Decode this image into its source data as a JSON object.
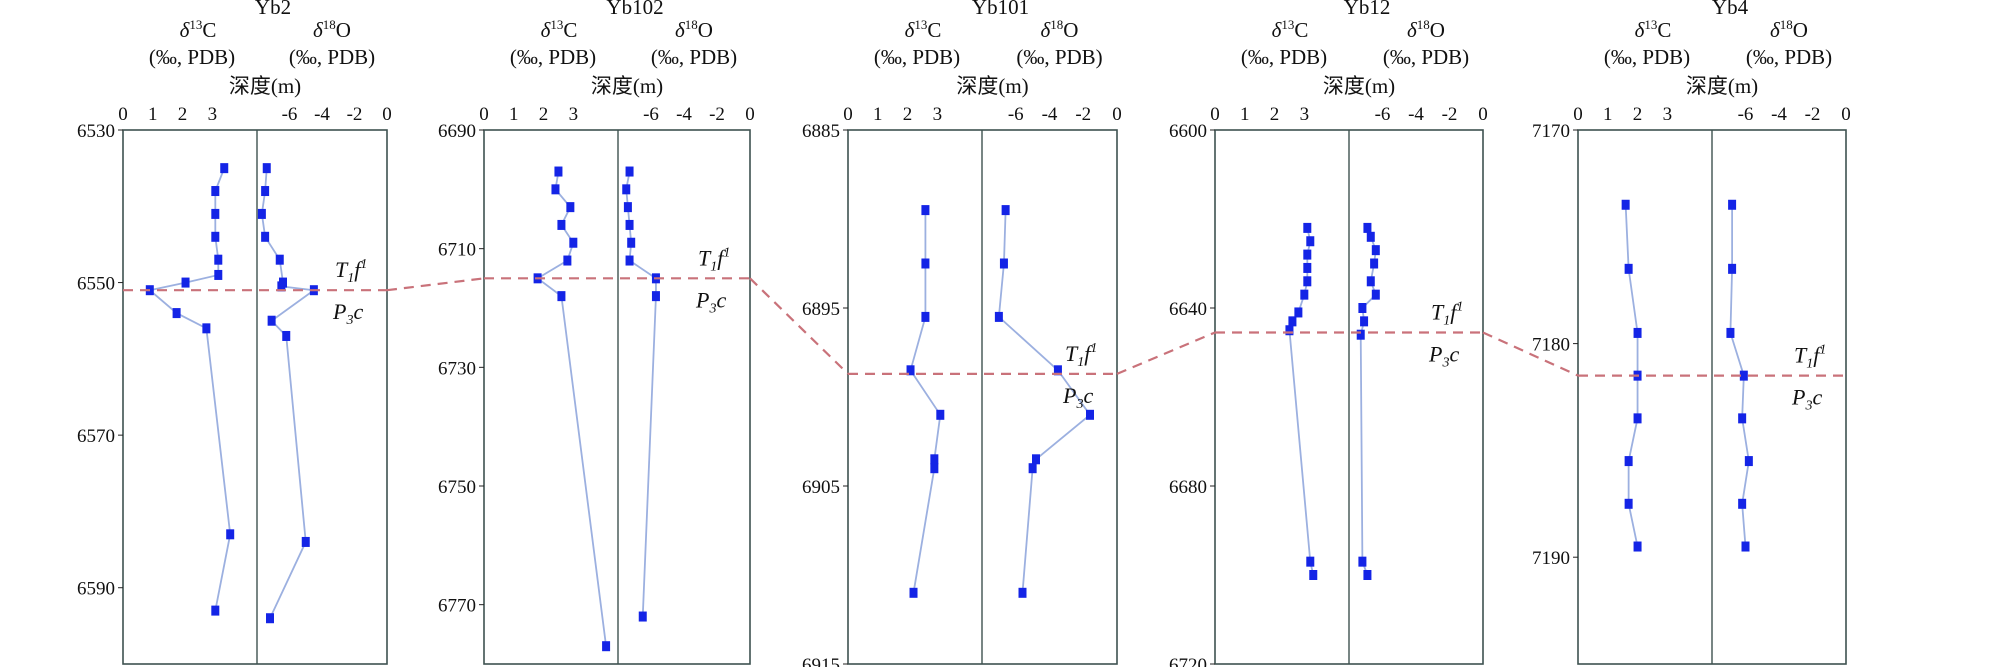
{
  "chart_data": [
    {
      "type": "line",
      "well": "Yb2",
      "depth_label": "深度(m)",
      "c13_header": [
        "δ13C",
        "(‰, PDB)"
      ],
      "o18_header": [
        "δ18O",
        "(‰, PDB)"
      ],
      "c13_ticks": [
        "0",
        "1",
        "2",
        "3"
      ],
      "o18_ticks": [
        "-6",
        "-4",
        "-2",
        "0"
      ],
      "depth_ticks": [
        "6530",
        "6550",
        "6570",
        "6590"
      ],
      "depth_range": [
        6530,
        6600
      ],
      "c13_range": [
        0,
        4.5
      ],
      "o18_range": [
        -8,
        0
      ],
      "c13": {
        "depth": [
          6535,
          6538,
          6541,
          6544,
          6547,
          6549,
          6550,
          6551,
          6554,
          6556,
          6583,
          6593
        ],
        "value": [
          3.4,
          3.1,
          3.1,
          3.1,
          3.2,
          3.2,
          2.1,
          0.9,
          1.8,
          2.8,
          3.6,
          3.1
        ]
      },
      "o18": {
        "depth": [
          6535,
          6538,
          6541,
          6544,
          6547,
          6550,
          6550.5,
          6551,
          6555,
          6557,
          6584,
          6594
        ],
        "value": [
          -7.4,
          -7.5,
          -7.7,
          -7.5,
          -6.6,
          -6.4,
          -6.5,
          -4.5,
          -7.1,
          -6.2,
          -5.0,
          -7.2
        ]
      },
      "boundary_depth": 6551,
      "strat_labels": {
        "above": "T",
        "above_sub": "1",
        "above_main": "f",
        "above_sup": "1",
        "below": "P",
        "below_sub": "3",
        "below_main": "c"
      }
    },
    {
      "type": "line",
      "well": "Yb102",
      "depth_label": "深度(m)",
      "c13_header": [
        "δ13C",
        "(‰, PDB)"
      ],
      "o18_header": [
        "δ18O",
        "(‰, PDB)"
      ],
      "c13_ticks": [
        "0",
        "1",
        "2",
        "3"
      ],
      "o18_ticks": [
        "-6",
        "-4",
        "-2",
        "0"
      ],
      "depth_ticks": [
        "6690",
        "6710",
        "6730",
        "6750",
        "6770"
      ],
      "depth_range": [
        6690,
        6780
      ],
      "c13_range": [
        0,
        4.5
      ],
      "o18_range": [
        -8,
        0
      ],
      "c13": {
        "depth": [
          6697,
          6700,
          6703,
          6706,
          6709,
          6712,
          6715,
          6718,
          6777
        ],
        "value": [
          2.5,
          2.4,
          2.9,
          2.6,
          3.0,
          2.8,
          1.8,
          2.6,
          4.1
        ]
      },
      "o18": {
        "depth": [
          6697,
          6700,
          6703,
          6706,
          6709,
          6712,
          6715,
          6718,
          6772
        ],
        "value": [
          -7.3,
          -7.5,
          -7.4,
          -7.3,
          -7.2,
          -7.3,
          -5.7,
          -5.7,
          -6.5
        ]
      },
      "boundary_depth": 6715,
      "strat_labels": {
        "above": "T",
        "above_sub": "1",
        "above_main": "f",
        "above_sup": "1",
        "below": "P",
        "below_sub": "3",
        "below_main": "c"
      }
    },
    {
      "type": "line",
      "well": "Yb101",
      "depth_label": "深度(m)",
      "c13_header": [
        "δ13C",
        "(‰, PDB)"
      ],
      "o18_header": [
        "δ18O",
        "(‰, PDB)"
      ],
      "c13_ticks": [
        "0",
        "1",
        "2",
        "3"
      ],
      "o18_ticks": [
        "-6",
        "-4",
        "-2",
        "0"
      ],
      "depth_ticks": [
        "6885",
        "6895",
        "6905",
        "6915"
      ],
      "depth_range": [
        6885,
        6915
      ],
      "c13_range": [
        0,
        4.5
      ],
      "o18_range": [
        -8,
        0
      ],
      "c13": {
        "depth": [
          6889.5,
          6892.5,
          6895.5,
          6898.5,
          6901,
          6903.5,
          6904,
          6911
        ],
        "value": [
          2.6,
          2.6,
          2.6,
          2.1,
          3.1,
          2.9,
          2.9,
          2.2
        ]
      },
      "o18": {
        "depth": [
          6889.5,
          6892.5,
          6895.5,
          6898.5,
          6901,
          6903.5,
          6904,
          6911
        ],
        "value": [
          -6.6,
          -6.7,
          -7.0,
          -3.5,
          -1.6,
          -4.8,
          -5.0,
          -5.6
        ]
      },
      "boundary_depth": 6898.7,
      "strat_labels": {
        "above": "T",
        "above_sub": "1",
        "above_main": "f",
        "above_sup": "1",
        "below": "P",
        "below_sub": "3",
        "below_main": "c"
      }
    },
    {
      "type": "line",
      "well": "Yb12",
      "depth_label": "深度(m)",
      "c13_header": [
        "δ13C",
        "(‰, PDB)"
      ],
      "o18_header": [
        "δ18O",
        "(‰, PDB)"
      ],
      "c13_ticks": [
        "0",
        "1",
        "2",
        "3"
      ],
      "o18_ticks": [
        "-6",
        "-4",
        "-2",
        "0"
      ],
      "depth_ticks": [
        "6600",
        "6640",
        "6680",
        "6720"
      ],
      "depth_range": [
        6600,
        6720
      ],
      "c13_range": [
        0,
        4.5
      ],
      "o18_range": [
        -8,
        0
      ],
      "c13": {
        "depth": [
          6622,
          6625,
          6628,
          6631,
          6634,
          6637,
          6641,
          6643,
          6645,
          6697,
          6700
        ],
        "value": [
          3.1,
          3.2,
          3.1,
          3.1,
          3.1,
          3.0,
          2.8,
          2.6,
          2.5,
          3.2,
          3.3
        ]
      },
      "o18": {
        "depth": [
          6622,
          6624,
          6627,
          6630,
          6634,
          6637,
          6640,
          6643,
          6646,
          6697,
          6700
        ],
        "value": [
          -6.9,
          -6.7,
          -6.4,
          -6.5,
          -6.7,
          -6.4,
          -7.2,
          -7.1,
          -7.3,
          -7.2,
          -6.9
        ]
      },
      "boundary_depth": 6645.5,
      "strat_labels": {
        "above": "T",
        "above_sub": "1",
        "above_main": "f",
        "above_sup": "1",
        "below": "P",
        "below_sub": "3",
        "below_main": "c"
      }
    },
    {
      "type": "line",
      "well": "Yb4",
      "depth_label": "深度(m)",
      "c13_header": [
        "δ13C",
        "(‰, PDB)"
      ],
      "o18_header": [
        "δ18O",
        "(‰, PDB)"
      ],
      "c13_ticks": [
        "1",
        "2",
        "3"
      ],
      "o18_ticks": [
        "-6",
        "-4",
        "-2",
        "0"
      ],
      "depth_ticks": [
        "7170",
        "7180",
        "7190"
      ],
      "depth_range": [
        7170,
        7195
      ],
      "c13_range": [
        0,
        4.5
      ],
      "o18_range": [
        -8,
        0
      ],
      "c13": {
        "depth": [
          7173.5,
          7176.5,
          7179.5,
          7181.5,
          7183.5,
          7185.5,
          7187.5,
          7189.5
        ],
        "value": [
          1.6,
          1.7,
          2.0,
          2.0,
          2.0,
          1.7,
          1.7,
          2.0
        ]
      },
      "o18": {
        "depth": [
          7173.5,
          7176.5,
          7179.5,
          7181.5,
          7183.5,
          7185.5,
          7187.5,
          7189.5
        ],
        "value": [
          -6.8,
          -6.8,
          -6.9,
          -6.1,
          -6.2,
          -5.8,
          -6.2,
          -6.0
        ]
      },
      "boundary_depth": 7181.5,
      "strat_labels": {
        "above": "T",
        "above_sub": "1",
        "above_main": "f",
        "above_sup": "1",
        "below": "P",
        "below_sub": "3",
        "below_main": "c"
      }
    }
  ]
}
